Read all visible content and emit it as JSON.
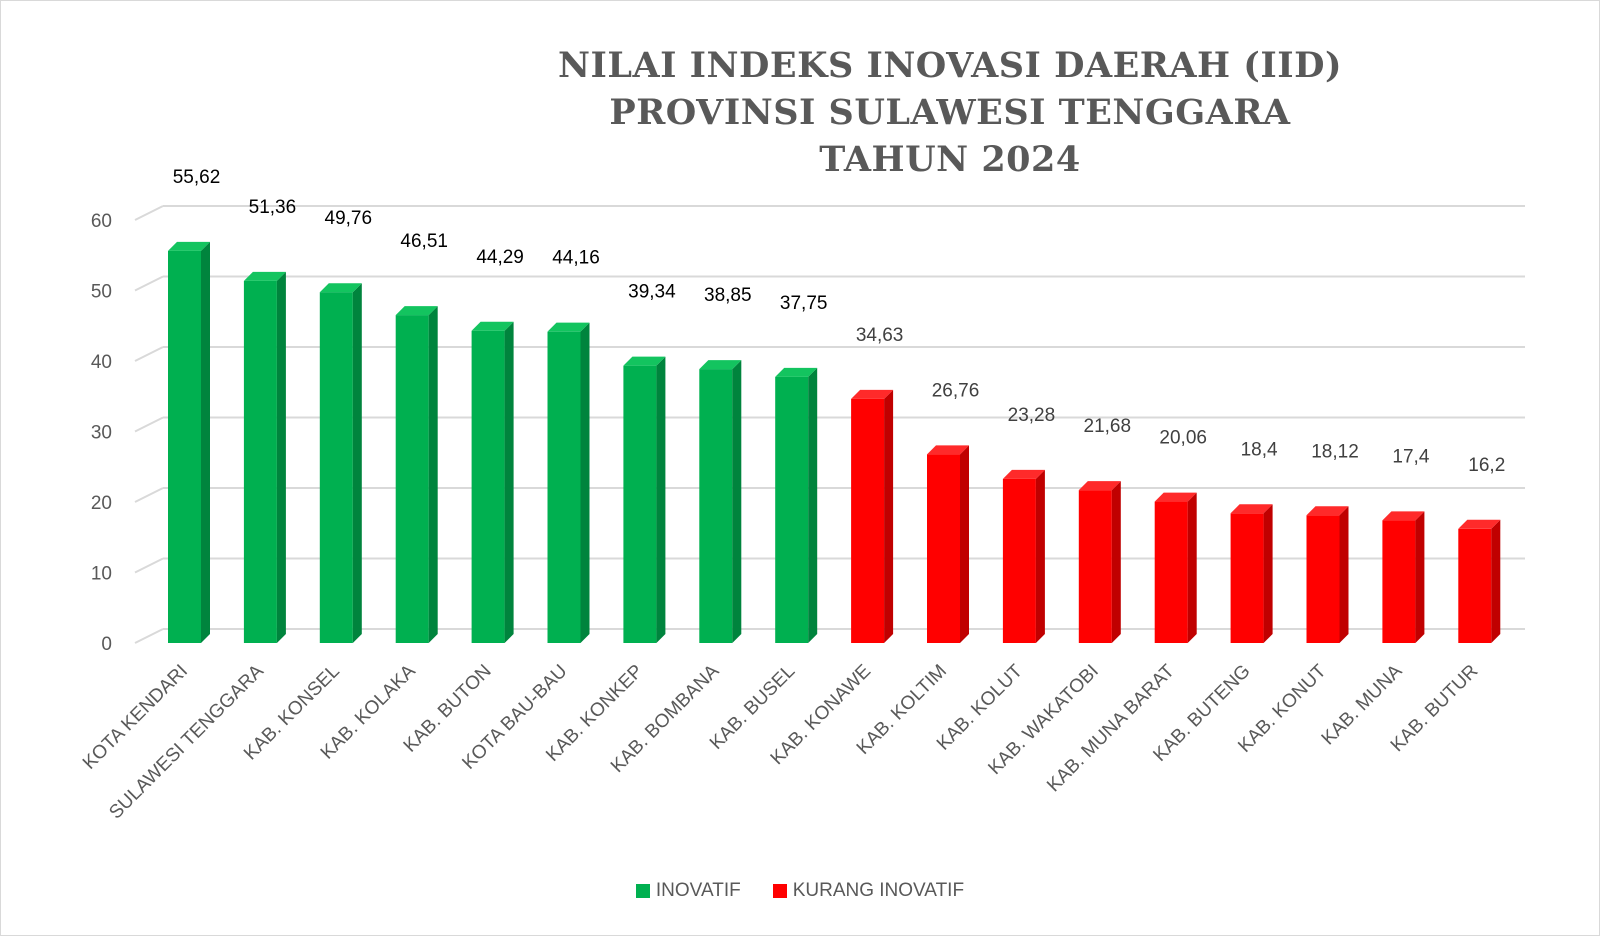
{
  "chart_data": {
    "type": "bar",
    "title_lines": [
      "NILAI INDEKS INOVASI DAERAH (IID)",
      "PROVINSI SULAWESI TENGGARA",
      "TAHUN 2024"
    ],
    "xlabel": "",
    "ylabel": "",
    "ylim": [
      0,
      60
    ],
    "yticks": [
      0,
      10,
      20,
      30,
      40,
      50,
      60
    ],
    "grid": true,
    "legend_placement": "bottom",
    "categories": [
      "KOTA KENDARI",
      "SULAWESI TENGGARA",
      "KAB. KONSEL",
      "KAB. KOLAKA",
      "KAB. BUTON",
      "KOTA BAU-BAU",
      "KAB. KONKEP",
      "KAB. BOMBANA",
      "KAB. BUSEL",
      "KAB. KONAWE",
      "KAB. KOLTIM",
      "KAB. KOLUT",
      "KAB. WAKATOBI",
      "KAB. MUNA BARAT",
      "KAB. BUTENG",
      "KAB. KONUT",
      "KAB. MUNA",
      "KAB. BUTUR"
    ],
    "values": [
      55.62,
      51.36,
      49.76,
      46.51,
      44.29,
      44.16,
      39.34,
      38.85,
      37.75,
      34.63,
      26.76,
      23.28,
      21.68,
      20.06,
      18.4,
      18.12,
      17.4,
      16.2
    ],
    "value_labels": [
      "55,62",
      "51,36",
      "49,76",
      "46,51",
      "44,29",
      "44,16",
      "39,34",
      "38,85",
      "37,75",
      "34,63",
      "26,76",
      "23,28",
      "21,68",
      "20,06",
      "18,4",
      "18,12",
      "17,4",
      "16,2"
    ],
    "point_class": [
      "INOVATIF",
      "INOVATIF",
      "INOVATIF",
      "INOVATIF",
      "INOVATIF",
      "INOVATIF",
      "INOVATIF",
      "INOVATIF",
      "INOVATIF",
      "KURANG INOVATIF",
      "KURANG INOVATIF",
      "KURANG INOVATIF",
      "KURANG INOVATIF",
      "KURANG INOVATIF",
      "KURANG INOVATIF",
      "KURANG INOVATIF",
      "KURANG INOVATIF",
      "KURANG INOVATIF"
    ],
    "legend": [
      {
        "name": "INOVATIF",
        "color": "#00b050",
        "side_color": "#00843d",
        "top_color": "#13c45f"
      },
      {
        "name": "KURANG INOVATIF",
        "color": "#ff0000",
        "side_color": "#c00000",
        "top_color": "#ff2a2a"
      }
    ]
  }
}
